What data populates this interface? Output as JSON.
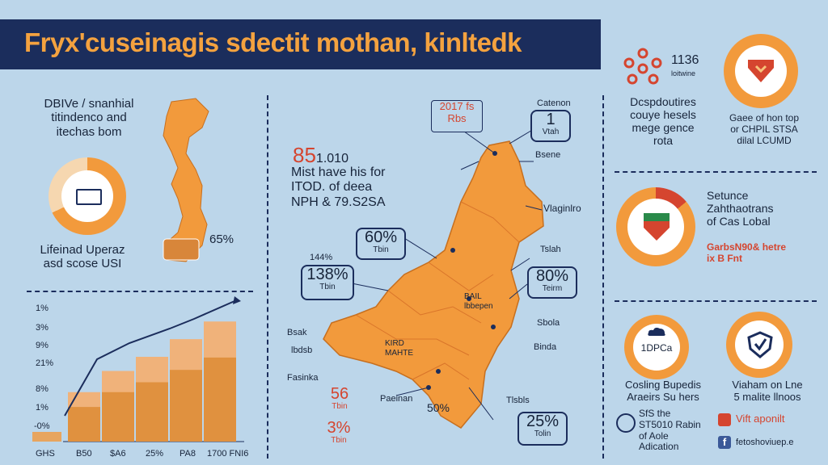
{
  "header": {
    "title": "Fryx'cuseinagis sdectit mothan, kinltedk"
  },
  "left": {
    "top_text": "DBIVe / snanhial\ntitindenco and\nitechas bom",
    "donut_value": "65%",
    "mid_text": "Lifeinad Uperaz\nasd scose USI",
    "y_ticks": [
      "1%",
      "3%",
      "9%",
      "21%",
      "8%",
      "1%",
      "-0%"
    ],
    "x_ticks": [
      "GHS",
      "B50",
      "$A6",
      "25%",
      "PA8",
      "1700 FNI6"
    ]
  },
  "chart_data": {
    "type": "bar",
    "categories": [
      "B50",
      "$A6",
      "25%",
      "PA8",
      "1700 FNI6"
    ],
    "values": [
      28,
      40,
      48,
      58,
      68
    ],
    "ylim": [
      0,
      80
    ],
    "title": "",
    "xlabel": "",
    "ylabel": ""
  },
  "center": {
    "headline_number": "85",
    "headline_suffix": "1.010",
    "headline_text": "Mist have his for\nITOD. of deea\nNPH & 79.S2SA"
  },
  "map": {
    "top_badge": "2017 fs\nRbs",
    "labels": [
      {
        "text": "Catenon"
      },
      {
        "text": "Bsene"
      },
      {
        "text": "Vlaginlro"
      },
      {
        "text": "Tslah"
      },
      {
        "text": "Sbola"
      },
      {
        "text": "Binda"
      },
      {
        "text": "Bsak"
      },
      {
        "text": "lbdsb"
      },
      {
        "text": "Fasinka"
      },
      {
        "text": "Paeinan"
      },
      {
        "text": "Tlsbls"
      },
      {
        "text": "BAIL\nlbbepen"
      },
      {
        "text": "KIRD\nMAHTE"
      },
      {
        "text": "144%"
      }
    ],
    "callouts": [
      {
        "big": "1",
        "sub": "Vtah"
      },
      {
        "big": "60%",
        "sub": "Tbin"
      },
      {
        "big": "138%",
        "sub": "Tbin"
      },
      {
        "big": "80%",
        "sub": "Teirm"
      },
      {
        "big": "25%",
        "sub": "Tolin"
      },
      {
        "big": "56",
        "sub": "Tbin"
      },
      {
        "big": "3%",
        "sub": "Tbin"
      },
      {
        "big": "50%",
        "sub": ""
      }
    ]
  },
  "right": {
    "top_number": "1136",
    "top_number_sub": "loitwine",
    "block1": "Dcspdoutires\ncouye hesels\nmege gence\nrota",
    "block2": "Gaee of hon top\nor CHPIL STSA\ndilal LCUMD",
    "block3_title": "Setunce\nZahthaotrans\nof Cas Lobal",
    "block3_sub": "GarbsN90& hetre\nix B Fnt",
    "circle_label": "1DPCa",
    "block4": "Cosling Bupedis\nAraeirs Su hers",
    "block5": "Viaham on Lne\n5 malite llnoos",
    "footer_text": "SfS the\nST5010 Rabin\nof Aole\nAdication",
    "social1": "Vift aponilt",
    "social2": "fetoshoviuep.e"
  },
  "colors": {
    "orange": "#f29a3c",
    "navy": "#1b2d5c",
    "background": "#bcd6ea",
    "red": "#d5452f"
  }
}
